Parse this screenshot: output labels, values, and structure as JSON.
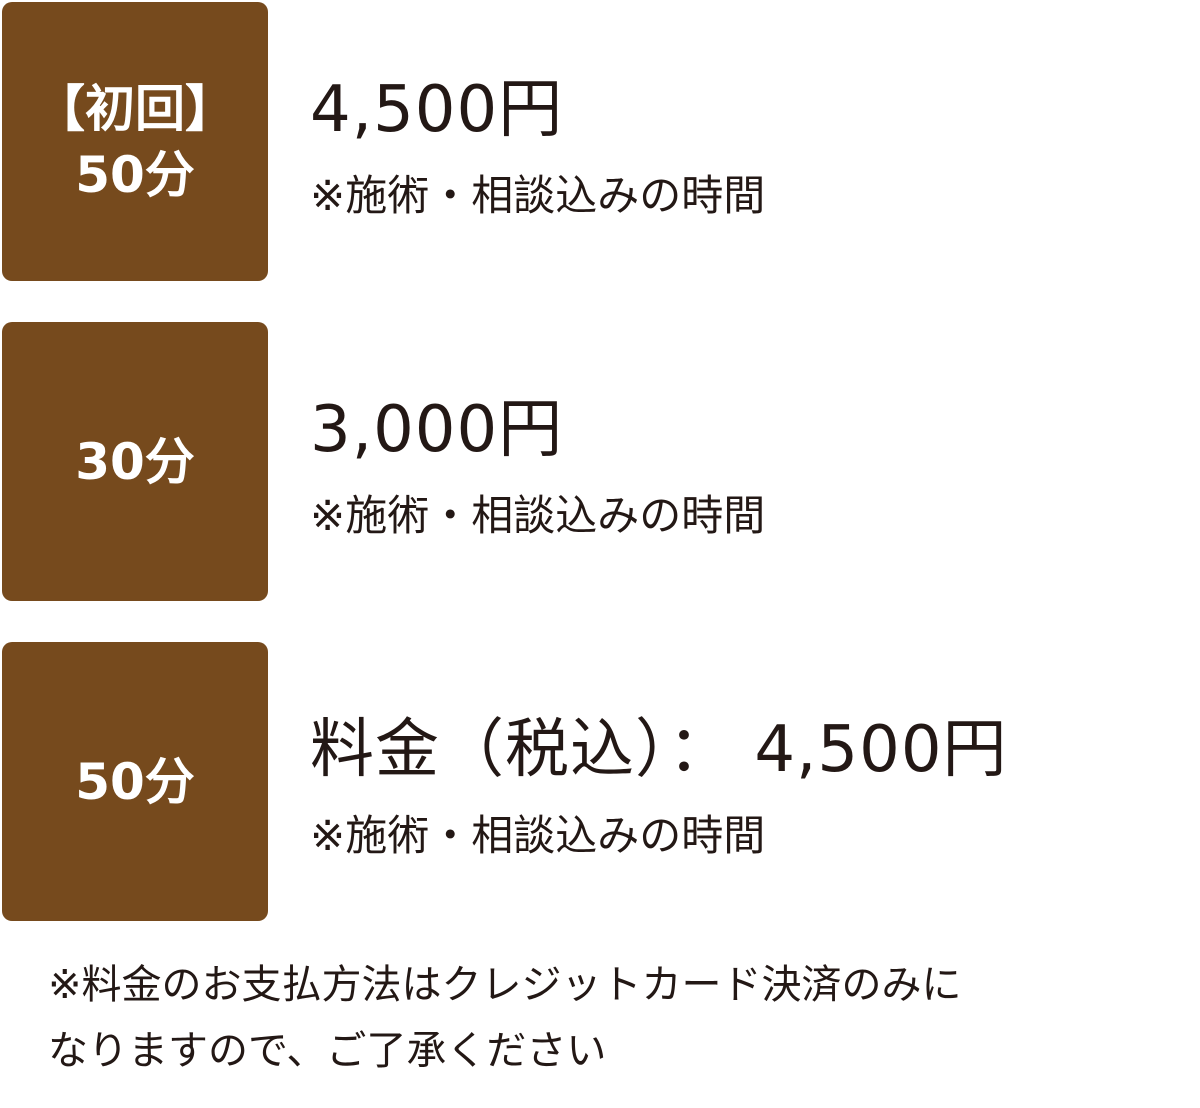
{
  "accent_color": "#764a1d",
  "plans": [
    {
      "badge_line1": "【初回】",
      "badge_line2": "50分",
      "price": "4,500円",
      "note": "※施術・相談込みの時間"
    },
    {
      "badge_line1": "",
      "badge_line2": "30分",
      "price": "3,000円",
      "note": "※施術・相談込みの時間"
    },
    {
      "badge_line1": "",
      "badge_line2": "50分",
      "price": "料金（税込）： 4,500円",
      "note": "※施術・相談込みの時間"
    }
  ],
  "footer": {
    "line1": "※料金のお支払方法はクレジットカード決済のみに",
    "line2": "なりますので、ご了承ください"
  }
}
